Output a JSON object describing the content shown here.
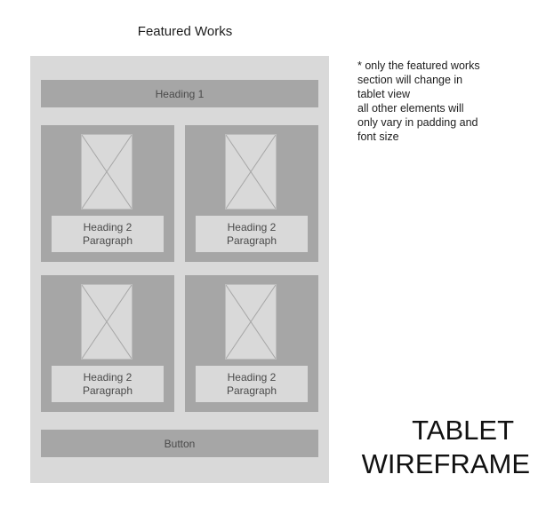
{
  "section_title": "Featured Works",
  "frame": {
    "heading": "Heading 1",
    "button": "Button",
    "cards": [
      {
        "heading": "Heading 2",
        "paragraph": "Paragraph"
      },
      {
        "heading": "Heading 2",
        "paragraph": "Paragraph"
      },
      {
        "heading": "Heading 2",
        "paragraph": "Paragraph"
      },
      {
        "heading": "Heading 2",
        "paragraph": "Paragraph"
      }
    ]
  },
  "note": {
    "lines": [
      "* only the featured works",
      "section will change in",
      "tablet view",
      "all other elements will",
      "only vary in padding and",
      "font size"
    ]
  },
  "label": {
    "line1": "TABLET",
    "line2": "WIREFRAME"
  },
  "colors": {
    "frame_bg": "#d9d9d9",
    "block_bg": "#a6a6a6",
    "text_muted": "#4a4a4a"
  }
}
